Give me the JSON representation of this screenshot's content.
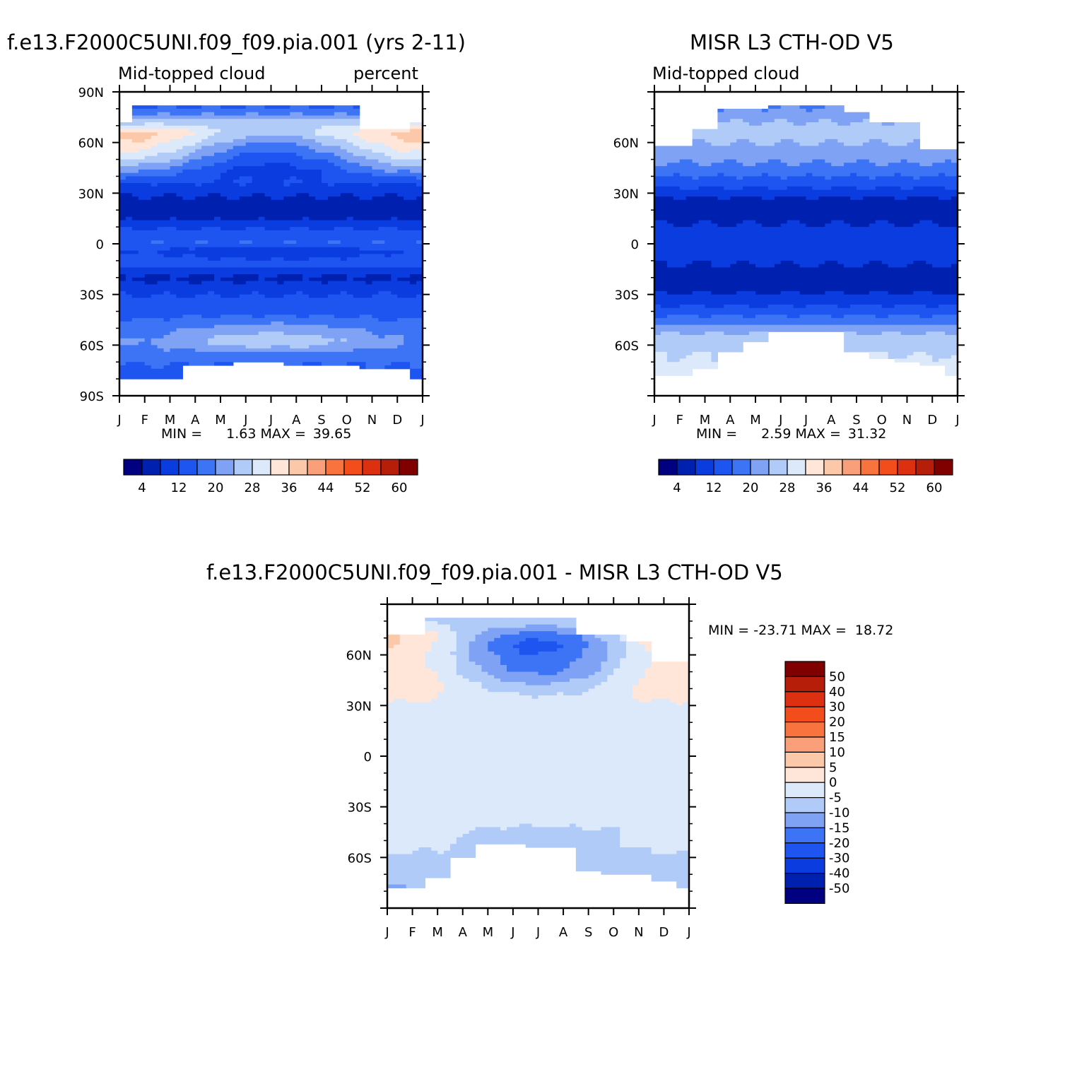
{
  "palette": {
    "colors": [
      "#000080",
      "#0020b0",
      "#0a3ce0",
      "#1e55f0",
      "#3c74f5",
      "#7fa2f5",
      "#b0cbf8",
      "#dce9fb",
      "#ffe6d9",
      "#fcc8aa",
      "#f9a07a",
      "#f9733f",
      "#f44d1c",
      "#dc3010",
      "#b71e0a",
      "#800000"
    ]
  },
  "panels": [
    {
      "id": "model",
      "title": "f.e13.F2000C5UNI.f09_f09.pia.001 (yrs 2-11)",
      "subtitle_left": "Mid-topped cloud",
      "subtitle_right": "percent",
      "stats": {
        "min_label": "MIN =",
        "min": "1.63",
        "max_label": "MAX =",
        "max": "39.65"
      }
    },
    {
      "id": "obs",
      "title": "MISR L3 CTH-OD V5",
      "subtitle_left": "Mid-topped cloud",
      "subtitle_right": "",
      "stats": {
        "min_label": "MIN =",
        "min": "2.59",
        "max_label": "MAX =",
        "max": "31.32"
      }
    },
    {
      "id": "diff",
      "title": "f.e13.F2000C5UNI.f09_f09.pia.001 - MISR L3 CTH-OD V5",
      "subtitle_left": "",
      "subtitle_right": "",
      "stats": {
        "min_label": "MIN =",
        "min": "-23.71",
        "max_label": "MAX =",
        "max": "18.72"
      }
    }
  ],
  "chart_data": [
    {
      "type": "heatmap",
      "panel": "model",
      "title": "f.e13.F2000C5UNI.f09_f09.pia.001 (yrs 2-11)",
      "variable": "Mid-topped cloud",
      "units": "percent",
      "x_ticks": [
        "J",
        "F",
        "M",
        "A",
        "M",
        "J",
        "J",
        "A",
        "S",
        "O",
        "N",
        "D",
        "J"
      ],
      "y_ticks": [
        "90N",
        "60N",
        "30N",
        "0",
        "30S",
        "60S",
        "90S"
      ],
      "ylim": [
        -90,
        90
      ],
      "colorbar_ticks": [
        "4",
        "12",
        "20",
        "28",
        "36",
        "44",
        "52",
        "60"
      ],
      "colorbar_levels": [
        0,
        4,
        8,
        12,
        16,
        20,
        24,
        28,
        32,
        36,
        40,
        44,
        48,
        52,
        56,
        60,
        64
      ],
      "min": 1.63,
      "max": 39.65,
      "lat": [
        -78,
        -72,
        -66,
        -58,
        -50,
        -44,
        -38,
        -32,
        -26,
        -20,
        -14,
        -8,
        -2,
        4,
        10,
        16,
        22,
        28,
        34,
        40,
        46,
        52,
        58,
        64,
        70,
        76,
        82
      ],
      "nodata": {
        "months_north_valid_start": [
          0,
          1,
          1,
          1,
          1,
          1,
          1,
          1,
          1,
          1,
          0,
          0,
          0
        ],
        "north_limit_lat": [
          72,
          82,
          82,
          82,
          82,
          82,
          82,
          82,
          82,
          82,
          68,
          68,
          72
        ],
        "south_limit_lat": [
          -79,
          -79,
          -79,
          -71,
          -71,
          -70,
          -70,
          -71,
          -71,
          -71,
          -73,
          -73,
          -79
        ]
      },
      "z_profile": {
        "lat": [
          -78,
          -66,
          -58,
          -50,
          -40,
          -30,
          -20,
          -12,
          -4,
          0,
          6,
          14,
          20,
          28,
          36,
          44,
          52,
          60,
          66,
          72,
          80
        ],
        "base": [
          14,
          18,
          24,
          20,
          14,
          12,
          7,
          14,
          10,
          16,
          14,
          8,
          5,
          8,
          12,
          16,
          22,
          28,
          32,
          26,
          16
        ],
        "amplitude_djf": [
          0,
          0,
          -4,
          -2,
          0,
          0,
          0,
          0,
          2,
          0,
          0,
          0,
          0,
          0,
          0,
          6,
          8,
          8,
          6,
          0,
          0
        ]
      }
    },
    {
      "type": "heatmap",
      "panel": "obs",
      "title": "MISR L3 CTH-OD V5",
      "variable": "Mid-topped cloud",
      "units": "percent",
      "x_ticks": [
        "J",
        "F",
        "M",
        "A",
        "M",
        "J",
        "J",
        "A",
        "S",
        "O",
        "N",
        "D",
        "J"
      ],
      "y_ticks": [
        "60N",
        "30N",
        "0",
        "30S",
        "60S"
      ],
      "ylim": [
        -90,
        90
      ],
      "colorbar_ticks": [
        "4",
        "12",
        "20",
        "28",
        "36",
        "44",
        "52",
        "60"
      ],
      "colorbar_levels": [
        0,
        4,
        8,
        12,
        16,
        20,
        24,
        28,
        32,
        36,
        40,
        44,
        48,
        52,
        56,
        60,
        64
      ],
      "min": 2.59,
      "max": 31.32,
      "nodata": {
        "north_limit_lat": [
          58,
          58,
          68,
          80,
          80,
          82,
          82,
          82,
          78,
          72,
          72,
          56,
          56
        ],
        "south_limit_lat": [
          -78,
          -78,
          -74,
          -63,
          -58,
          -52,
          -52,
          -52,
          -63,
          -68,
          -70,
          -72,
          -78
        ]
      },
      "z_profile": {
        "lat": [
          -78,
          -66,
          -56,
          -48,
          -40,
          -30,
          -20,
          -12,
          -4,
          4,
          12,
          20,
          28,
          36,
          44,
          52,
          60,
          66,
          72,
          80
        ],
        "base": [
          30,
          28,
          26,
          20,
          14,
          8,
          6,
          8,
          10,
          10,
          8,
          5,
          8,
          14,
          18,
          22,
          24,
          26,
          24,
          20
        ],
        "amplitude_djf": [
          0,
          0,
          0,
          0,
          0,
          0,
          0,
          0,
          0,
          0,
          0,
          0,
          0,
          0,
          0,
          0,
          0,
          0,
          0,
          0
        ]
      }
    },
    {
      "type": "heatmap",
      "panel": "diff",
      "title": "f.e13.F2000C5UNI.f09_f09.pia.001 - MISR L3 CTH-OD V5",
      "x_ticks": [
        "J",
        "F",
        "M",
        "A",
        "M",
        "J",
        "J",
        "A",
        "S",
        "O",
        "N",
        "D",
        "J"
      ],
      "y_ticks": [
        "60N",
        "30N",
        "0",
        "30S",
        "60S"
      ],
      "ylim": [
        -90,
        90
      ],
      "colorbar_ticks": [
        "50",
        "40",
        "30",
        "20",
        "15",
        "10",
        "5",
        "0",
        "-5",
        "-10",
        "-15",
        "-20",
        "-30",
        "-40",
        "-50"
      ],
      "colorbar_levels": [
        -60,
        -50,
        -40,
        -30,
        -20,
        -15,
        -10,
        -5,
        0,
        5,
        10,
        15,
        20,
        30,
        40,
        50,
        60
      ],
      "min": -23.71,
      "max": 18.72,
      "nodata": {
        "north_limit_lat": [
          72,
          72,
          82,
          82,
          82,
          82,
          82,
          82,
          72,
          72,
          68,
          56,
          56
        ],
        "south_limit_lat": [
          -78,
          -78,
          -72,
          -60,
          -52,
          -52,
          -54,
          -54,
          -68,
          -70,
          -70,
          -74,
          -78
        ]
      },
      "z_profile": {
        "lat": [
          -78,
          -70,
          -60,
          -50,
          -40,
          -30,
          -10,
          0,
          10,
          30,
          40,
          50,
          60,
          66,
          72,
          80
        ],
        "base": [
          -10,
          -8,
          -6,
          -6,
          -4,
          -1,
          -1,
          -1,
          -1,
          -1,
          -2,
          -6,
          -8,
          -8,
          -6,
          -6
        ],
        "amplitude_djf": [
          0,
          0,
          0,
          4,
          0,
          0,
          0,
          0,
          0,
          0,
          6,
          10,
          12,
          14,
          12,
          0
        ]
      }
    }
  ]
}
